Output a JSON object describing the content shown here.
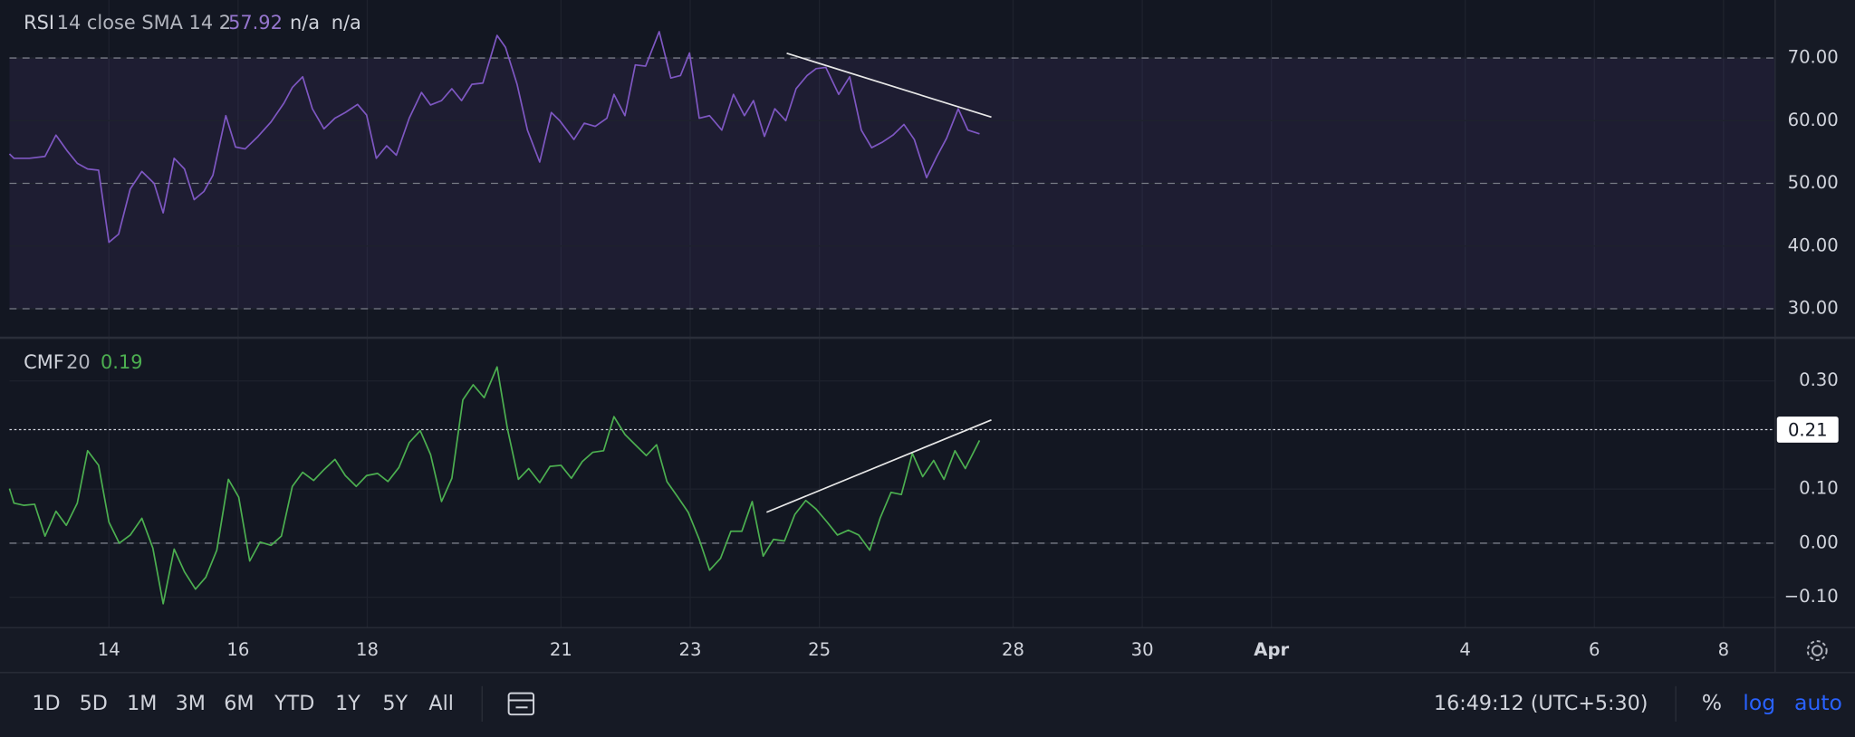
{
  "chart_data": [
    {
      "type": "line",
      "title": "RSI",
      "params": "14 close SMA 14 2",
      "last_value": 57.92,
      "extra_values": [
        "n/a",
        "n/a"
      ],
      "color": "#7e57c2",
      "x": [
        12.46,
        12.53,
        12.77,
        13.01,
        13.18,
        13.36,
        13.51,
        13.67,
        13.84,
        14.0,
        14.15,
        14.33,
        14.51,
        14.7,
        14.84,
        15.01,
        15.17,
        15.32,
        15.47,
        15.61,
        15.81,
        15.96,
        16.11,
        16.31,
        16.51,
        16.71,
        16.84,
        17.0,
        17.15,
        17.33,
        17.5,
        17.66,
        17.85,
        17.99,
        18.14,
        18.3,
        18.45,
        18.65,
        18.84,
        18.98,
        19.15,
        19.31,
        19.46,
        19.62,
        19.79,
        20.01,
        20.14,
        20.32,
        20.48,
        20.67,
        20.85,
        20.98,
        21.2,
        21.36,
        21.53,
        21.71,
        21.82,
        21.99,
        22.15,
        22.31,
        22.52,
        22.7,
        22.85,
        22.99,
        23.14,
        23.3,
        23.49,
        23.67,
        23.84,
        23.98,
        24.15,
        24.31,
        24.48,
        24.64,
        24.81,
        24.95,
        25.1,
        25.3,
        25.47,
        25.65,
        25.81,
        25.98,
        26.14,
        26.31,
        26.47,
        26.66,
        26.82,
        26.97,
        27.15,
        27.3,
        27.48
      ],
      "values": [
        54.7,
        54.0,
        54.0,
        54.3,
        57.7,
        55.1,
        53.2,
        52.3,
        52.1,
        40.6,
        41.9,
        49.1,
        51.9,
        50.0,
        45.3,
        54.0,
        52.3,
        47.4,
        48.7,
        51.3,
        60.8,
        55.8,
        55.5,
        57.5,
        59.8,
        62.8,
        65.3,
        67.0,
        61.9,
        58.7,
        60.4,
        61.3,
        62.6,
        60.9,
        54.0,
        56.0,
        54.5,
        60.4,
        64.5,
        62.5,
        63.2,
        65.1,
        63.2,
        65.8,
        66.0,
        73.6,
        71.7,
        65.8,
        58.5,
        53.4,
        61.3,
        60.0,
        57.0,
        59.6,
        59.1,
        60.4,
        64.2,
        60.8,
        68.9,
        68.7,
        74.2,
        66.8,
        67.2,
        70.8,
        60.4,
        60.8,
        58.5,
        64.2,
        60.8,
        63.2,
        57.5,
        61.9,
        60.0,
        65.1,
        67.2,
        68.3,
        68.5,
        64.2,
        67.0,
        58.5,
        55.7,
        56.6,
        57.7,
        59.4,
        57.0,
        50.9,
        54.3,
        57.2,
        61.9,
        58.5,
        57.9
      ],
      "xlim": [
        12.46,
        39.79
      ],
      "ylim": [
        25.47,
        79.25
      ],
      "yticks": [
        {
          "value": 30,
          "label": "30.00"
        },
        {
          "value": 40,
          "label": "40.00"
        },
        {
          "value": 50,
          "label": "50.00"
        },
        {
          "value": 60,
          "label": "60.00"
        },
        {
          "value": 70,
          "label": "70.00"
        }
      ],
      "levels": [
        30,
        50,
        70
      ],
      "band": [
        30,
        70
      ],
      "grid": true
    },
    {
      "type": "line",
      "title": "CMF",
      "params": "20",
      "last_value": 0.19,
      "color": "#4caf50",
      "x": [
        12.46,
        12.53,
        12.68,
        12.85,
        13.01,
        13.18,
        13.34,
        13.51,
        13.67,
        13.84,
        14.0,
        14.16,
        14.33,
        14.51,
        14.68,
        14.84,
        15.01,
        15.17,
        15.34,
        15.5,
        15.67,
        15.85,
        16.01,
        16.18,
        16.34,
        16.51,
        16.67,
        16.84,
        17.0,
        17.17,
        17.33,
        17.5,
        17.66,
        17.83,
        17.99,
        18.16,
        18.32,
        18.49,
        18.65,
        18.82,
        18.98,
        19.15,
        19.31,
        19.48,
        19.64,
        19.81,
        20.01,
        20.17,
        20.34,
        20.5,
        20.67,
        20.83,
        21.0,
        21.16,
        21.33,
        21.49,
        21.66,
        21.82,
        21.99,
        22.15,
        22.32,
        22.48,
        22.64,
        22.81,
        22.97,
        23.14,
        23.3,
        23.47,
        23.63,
        23.8,
        23.96,
        24.13,
        24.29,
        24.46,
        24.62,
        24.79,
        24.95,
        25.12,
        25.28,
        25.45,
        25.61,
        25.78,
        25.94,
        26.11,
        26.27,
        26.44,
        26.6,
        26.77,
        26.93,
        27.1,
        27.26,
        27.48
      ],
      "values": [
        0.101,
        0.074,
        0.07,
        0.072,
        0.013,
        0.059,
        0.033,
        0.074,
        0.171,
        0.144,
        0.039,
        0,
        0.015,
        0.046,
        -0.009,
        -0.112,
        -0.011,
        -0.053,
        -0.085,
        -0.063,
        -0.013,
        0.118,
        0.085,
        -0.033,
        0.002,
        -0.004,
        0.013,
        0.105,
        0.131,
        0.116,
        0.136,
        0.155,
        0.125,
        0.105,
        0.125,
        0.129,
        0.114,
        0.14,
        0.186,
        0.208,
        0.164,
        0.077,
        0.12,
        0.265,
        0.293,
        0.269,
        0.326,
        0.212,
        0.118,
        0.138,
        0.112,
        0.142,
        0.144,
        0.12,
        0.151,
        0.168,
        0.171,
        0.234,
        0.201,
        0.182,
        0.162,
        0.182,
        0.114,
        0.085,
        0.057,
        0.007,
        -0.05,
        -0.028,
        0.022,
        0.022,
        0.077,
        -0.024,
        0.007,
        0.004,
        0.053,
        0.079,
        0.063,
        0.039,
        0.015,
        0.024,
        0.015,
        -0.013,
        0.046,
        0.094,
        0.09,
        0.166,
        0.123,
        0.153,
        0.118,
        0.171,
        0.138,
        0.19
      ],
      "xlim": [
        12.46,
        39.79
      ],
      "ylim": [
        -0.155,
        0.381
      ],
      "yticks": [
        {
          "value": -0.1,
          "label": "−0.10"
        },
        {
          "value": 0,
          "label": "0.00"
        },
        {
          "value": 0.1,
          "label": "0.10"
        },
        {
          "value": 0.3,
          "label": "0.30"
        }
      ],
      "levels": [
        0
      ],
      "price_line": 0.21,
      "grid": true,
      "xticks": [
        14,
        16,
        18,
        21,
        23,
        25,
        28,
        30,
        {
          "value": 32,
          "label": "Apr"
        },
        {
          "value": 35,
          "label": "4"
        },
        {
          "value": 37,
          "label": "6"
        },
        {
          "value": 39,
          "label": "8"
        }
      ]
    }
  ],
  "toolbar": {
    "ranges": [
      "1D",
      "5D",
      "1M",
      "3M",
      "6M",
      "YTD",
      "1Y",
      "5Y",
      "All"
    ],
    "clock": "16:49:12 (UTC+5:30)",
    "options": [
      {
        "label": "%",
        "active": false
      },
      {
        "label": "log",
        "active": true
      },
      {
        "label": "auto",
        "active": true
      }
    ]
  }
}
